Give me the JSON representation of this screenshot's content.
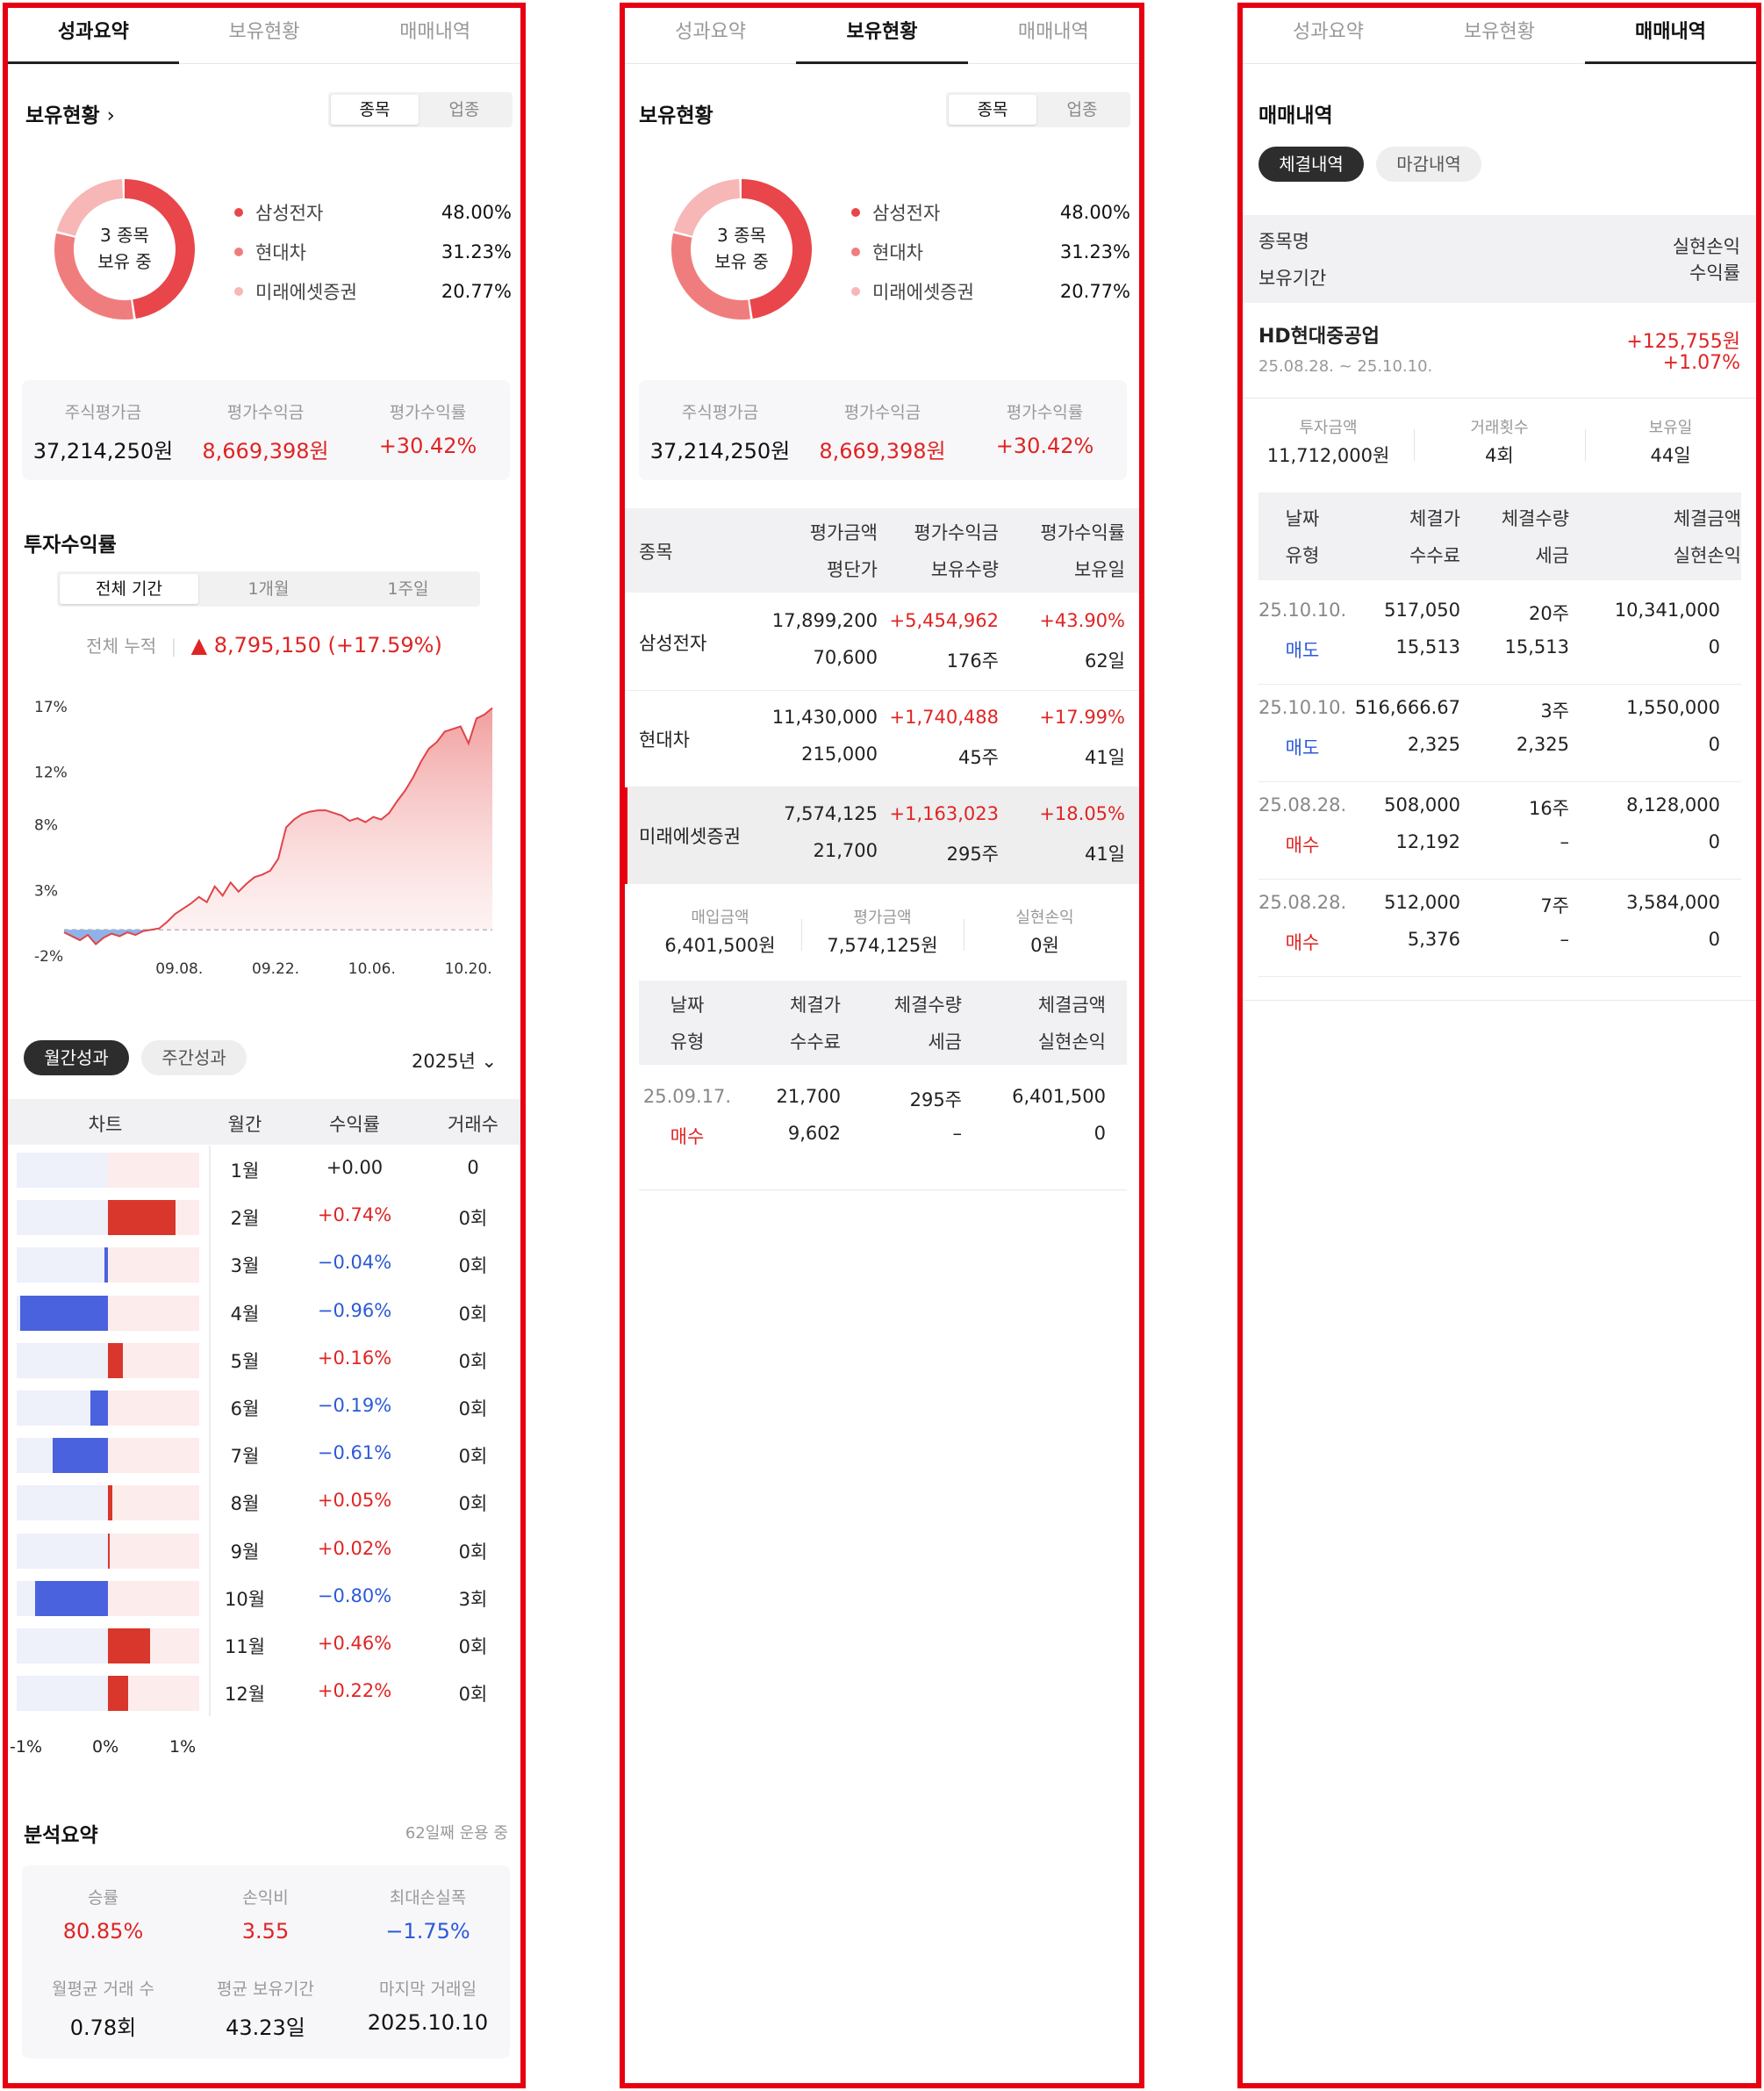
{
  "tabs": [
    "성과요약",
    "보유현황",
    "매매내역"
  ],
  "colors": {
    "red": "#e02424",
    "blue": "#2b5ad8",
    "frame": "#e60012"
  },
  "holdings_summary": {
    "title": "보유현황",
    "segment": [
      "종목",
      "업종"
    ],
    "donut_center": [
      "3 종목",
      "보유 중"
    ],
    "items": [
      {
        "name": "삼성전자",
        "pct": "48.00%",
        "value": 48.0,
        "color": "#e8464a"
      },
      {
        "name": "현대차",
        "pct": "31.23%",
        "value": 31.23,
        "color": "#f07d7d"
      },
      {
        "name": "미래에셋증권",
        "pct": "20.77%",
        "value": 20.77,
        "color": "#f7b7b7"
      }
    ],
    "stats": [
      {
        "label": "주식평가금",
        "value": "37,214,250원",
        "tone": "normal"
      },
      {
        "label": "평가수익금",
        "value": "8,669,398원",
        "tone": "red"
      },
      {
        "label": "평가수익률",
        "value": "+30.42%",
        "tone": "red"
      }
    ]
  },
  "returns": {
    "title": "투자수익률",
    "periods": [
      "전체 기간",
      "1개월",
      "1주일"
    ],
    "cumulative_label": "전체 누적",
    "cumulative_value": "▲ 8,795,150  (+17.59%)"
  },
  "chart_data": {
    "type": "area",
    "x_ticks": [
      "09.08.",
      "09.22.",
      "10.06.",
      "10.20."
    ],
    "y_ticks": [
      "17%",
      "12%",
      "8%",
      "3%",
      "-2%"
    ],
    "ylim": [
      -2,
      17
    ],
    "series": [
      {
        "values": [
          -0.2,
          -0.5,
          -0.8,
          -0.4,
          -1.1,
          -0.6,
          -0.3,
          -0.5,
          -0.2,
          -0.4,
          -0.1,
          0.0,
          0.1,
          0.6,
          1.2,
          1.6,
          2.0,
          2.5,
          2.1,
          3.3,
          2.6,
          3.6,
          2.9,
          3.5,
          4.0,
          4.2,
          4.5,
          5.4,
          7.8,
          8.4,
          8.8,
          9.0,
          9.1,
          9.1,
          8.9,
          8.7,
          8.3,
          8.5,
          8.2,
          8.6,
          8.4,
          8.9,
          9.8,
          10.6,
          11.6,
          12.8,
          13.8,
          14.3,
          15.1,
          15.3,
          15.5,
          14.2,
          16.1,
          16.4,
          16.9
        ]
      }
    ]
  },
  "monthly": {
    "toggle": [
      "월간성과",
      "주간성과"
    ],
    "year": "2025년",
    "headers": [
      "차트",
      "월간",
      "수익률",
      "거래수"
    ],
    "axis": [
      "-1%",
      "0%",
      "1%"
    ],
    "rows": [
      {
        "month": "1월",
        "ret": "+0.00",
        "value": 0.0,
        "count": "0",
        "tone": "normal"
      },
      {
        "month": "2월",
        "ret": "+0.74%",
        "value": 0.74,
        "count": "0회",
        "tone": "red"
      },
      {
        "month": "3월",
        "ret": "−0.04%",
        "value": -0.04,
        "count": "0회",
        "tone": "blue"
      },
      {
        "month": "4월",
        "ret": "−0.96%",
        "value": -0.96,
        "count": "0회",
        "tone": "blue"
      },
      {
        "month": "5월",
        "ret": "+0.16%",
        "value": 0.16,
        "count": "0회",
        "tone": "red"
      },
      {
        "month": "6월",
        "ret": "−0.19%",
        "value": -0.19,
        "count": "0회",
        "tone": "blue"
      },
      {
        "month": "7월",
        "ret": "−0.61%",
        "value": -0.61,
        "count": "0회",
        "tone": "blue"
      },
      {
        "month": "8월",
        "ret": "+0.05%",
        "value": 0.05,
        "count": "0회",
        "tone": "red"
      },
      {
        "month": "9월",
        "ret": "+0.02%",
        "value": 0.02,
        "count": "0회",
        "tone": "red"
      },
      {
        "month": "10월",
        "ret": "−0.80%",
        "value": -0.8,
        "count": "3회",
        "tone": "blue"
      },
      {
        "month": "11월",
        "ret": "+0.46%",
        "value": 0.46,
        "count": "0회",
        "tone": "red"
      },
      {
        "month": "12월",
        "ret": "+0.22%",
        "value": 0.22,
        "count": "0회",
        "tone": "red"
      }
    ]
  },
  "analysis": {
    "title": "분석요약",
    "days": "62일째 운용 중",
    "stats": [
      {
        "label": "승률",
        "value": "80.85%",
        "tone": "red"
      },
      {
        "label": "손익비",
        "value": "3.55",
        "tone": "red"
      },
      {
        "label": "최대손실폭",
        "value": "−1.75%",
        "tone": "blue"
      },
      {
        "label": "월평균 거래 수",
        "value": "0.78회",
        "tone": "normal"
      },
      {
        "label": "평균 보유기간",
        "value": "43.23일",
        "tone": "normal"
      },
      {
        "label": "마지막 거래일",
        "value": "2025.10.10",
        "tone": "normal"
      }
    ]
  },
  "holdings_detail": {
    "title": "보유현황",
    "table_headers": {
      "name": "종목",
      "h1": [
        "평가금액",
        "평단가"
      ],
      "h2": [
        "평가수익금",
        "보유수량"
      ],
      "h3": [
        "평가수익률",
        "보유일"
      ]
    },
    "rows": [
      {
        "name": "삼성전자",
        "eval": "17,899,200",
        "avg": "70,600",
        "profit": "+5,454,962",
        "qty": "176주",
        "rate": "+43.90%",
        "days": "62일"
      },
      {
        "name": "현대차",
        "eval": "11,430,000",
        "avg": "215,000",
        "profit": "+1,740,488",
        "qty": "45주",
        "rate": "+17.99%",
        "days": "41일"
      },
      {
        "name": "미래에셋증권",
        "eval": "7,574,125",
        "avg": "21,700",
        "profit": "+1,163,023",
        "qty": "295주",
        "rate": "+18.05%",
        "days": "41일"
      }
    ],
    "summary": [
      {
        "label": "매입금액",
        "value": "6,401,500원"
      },
      {
        "label": "평가금액",
        "value": "7,574,125원"
      },
      {
        "label": "실현손익",
        "value": "0원"
      }
    ],
    "trade_headers": [
      [
        "날짜",
        "유형"
      ],
      [
        "체결가",
        "수수료"
      ],
      [
        "체결수량",
        "세금"
      ],
      [
        "체결금액",
        "실현손익"
      ]
    ],
    "trades": [
      {
        "date": "25.09.17.",
        "type": "매수",
        "price": "21,700",
        "fee": "9,602",
        "qty": "295주",
        "tax": "–",
        "amount": "6,401,500",
        "pnl": "0"
      }
    ]
  },
  "trade_history": {
    "title": "매매내역",
    "toggle": [
      "체결내역",
      "마감내역"
    ],
    "list_headers": {
      "left": [
        "종목명",
        "보유기간"
      ],
      "right": [
        "실현손익",
        "수익률"
      ]
    },
    "item": {
      "name": "HD현대중공업",
      "period": "25.08.28. ~ 25.10.10.",
      "pnl": "+125,755원",
      "rate": "+1.07%"
    },
    "item_stats": [
      {
        "label": "투자금액",
        "value": "11,712,000원"
      },
      {
        "label": "거래횟수",
        "value": "4회"
      },
      {
        "label": "보유일",
        "value": "44일"
      }
    ],
    "trade_headers": [
      [
        "날짜",
        "유형"
      ],
      [
        "체결가",
        "수수료"
      ],
      [
        "체결수량",
        "세금"
      ],
      [
        "체결금액",
        "실현손익"
      ]
    ],
    "trades": [
      {
        "date": "25.10.10.",
        "type": "매도",
        "tone": "blue",
        "price": "517,050",
        "fee": "15,513",
        "qty": "20주",
        "tax": "15,513",
        "amount": "10,341,000",
        "pnl": "0"
      },
      {
        "date": "25.10.10.",
        "type": "매도",
        "tone": "blue",
        "price": "516,666.67",
        "fee": "2,325",
        "qty": "3주",
        "tax": "2,325",
        "amount": "1,550,000",
        "pnl": "0"
      },
      {
        "date": "25.08.28.",
        "type": "매수",
        "tone": "red",
        "price": "508,000",
        "fee": "12,192",
        "qty": "16주",
        "tax": "–",
        "amount": "8,128,000",
        "pnl": "0"
      },
      {
        "date": "25.08.28.",
        "type": "매수",
        "tone": "red",
        "price": "512,000",
        "fee": "5,376",
        "qty": "7주",
        "tax": "–",
        "amount": "3,584,000",
        "pnl": "0"
      }
    ]
  }
}
